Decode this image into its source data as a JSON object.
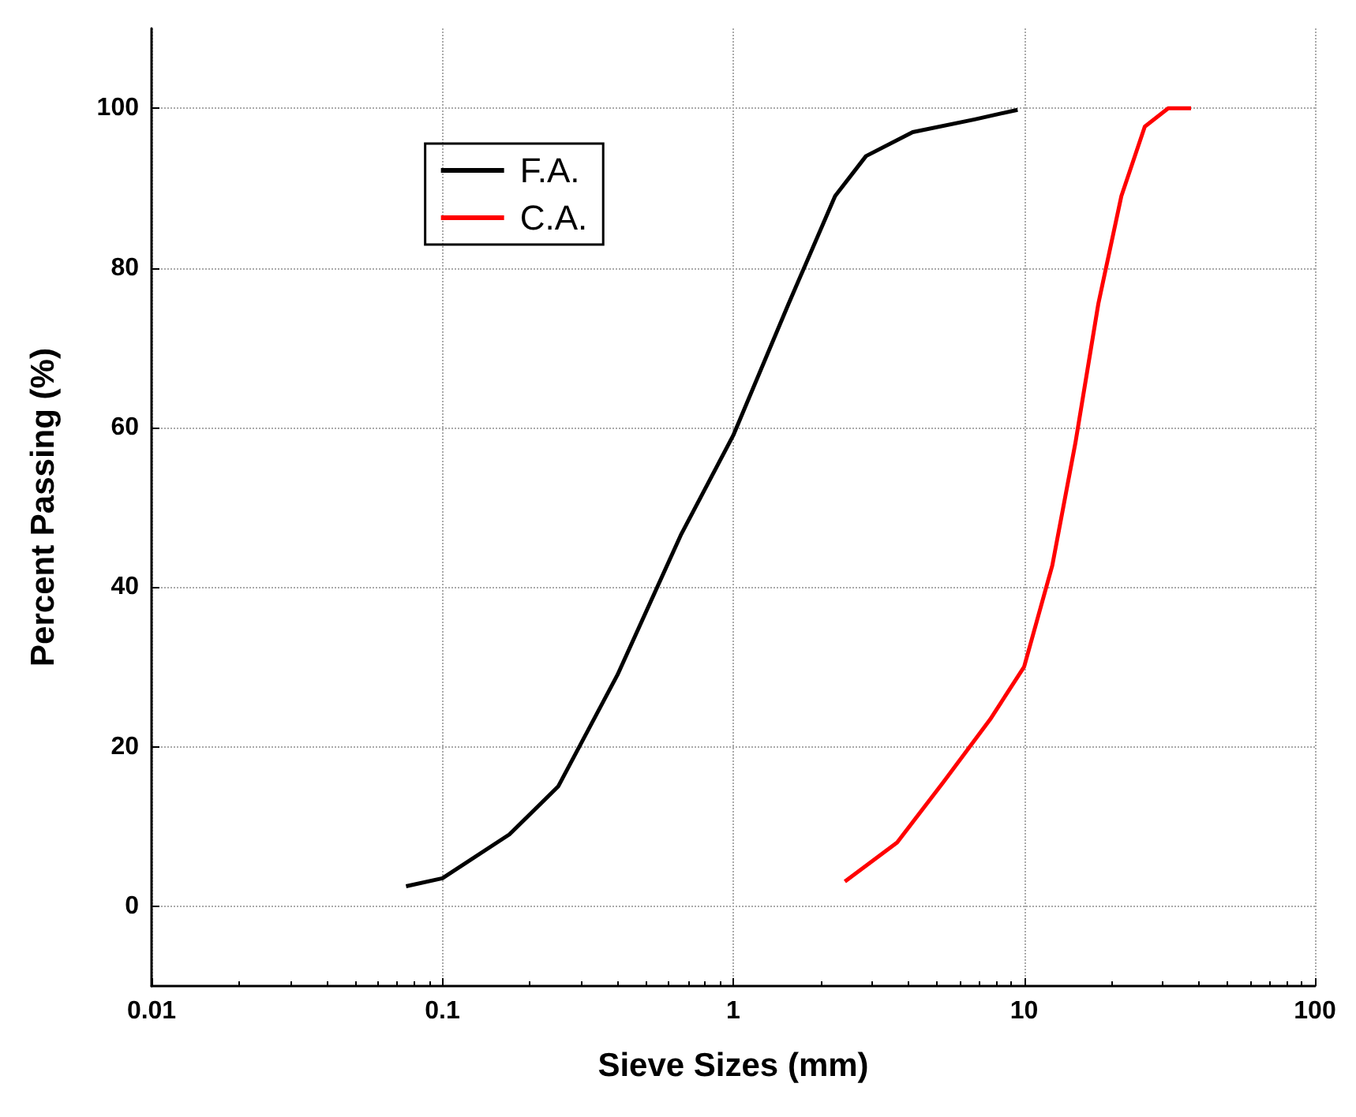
{
  "chart_data": {
    "type": "line",
    "xlabel": "Sieve Sizes (mm)",
    "ylabel": "Percent Passing (%)",
    "log": "x",
    "xlim": [
      0.01,
      100
    ],
    "xticks": [
      0.01,
      0.1,
      1,
      10,
      100
    ],
    "ylim": [
      -10,
      110
    ],
    "yticks": [
      0,
      20,
      40,
      60,
      80,
      100
    ],
    "grid": true,
    "legend": "top left",
    "marker": "none",
    "line_style": "solid",
    "series": [
      {
        "name": "F.A.",
        "color": "#000000",
        "x": [
          0.075,
          0.1,
          0.17,
          0.25,
          0.4,
          0.66,
          1,
          1.55,
          2.24,
          2.86,
          4.14,
          6.76,
          9.5
        ],
        "values": [
          2.5,
          3.5,
          9,
          15,
          29,
          46.5,
          59,
          75.5,
          89,
          94,
          97,
          98.6,
          99.8
        ]
      },
      {
        "name": "C.A.",
        "color": "#ff0000",
        "x": [
          2.42,
          3.66,
          5.29,
          7.64,
          10,
          12.5,
          15,
          18,
          21.6,
          26,
          31.3,
          37.5
        ],
        "values": [
          3.1,
          8,
          15.6,
          23.4,
          30,
          42.7,
          58,
          75.5,
          89,
          97.7,
          100,
          100
        ]
      }
    ]
  }
}
